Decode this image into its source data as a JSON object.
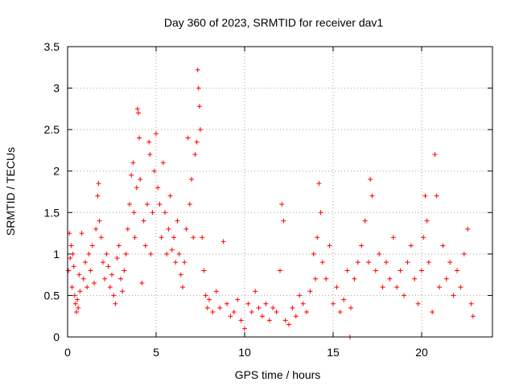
{
  "chart_data": {
    "type": "scatter",
    "title": "Day 360 of 2023, SRMTID for receiver dav1",
    "xlabel": "GPS time / hours",
    "ylabel": "SRMTID / TECUs",
    "xlim": [
      0,
      24
    ],
    "ylim": [
      0,
      3.5
    ],
    "xticks": [
      0,
      5,
      10,
      15,
      20
    ],
    "xtick_labels": [
      "0",
      "5",
      "10",
      "15",
      "20"
    ],
    "yticks": [
      0,
      0.5,
      1,
      1.5,
      2,
      2.5,
      3,
      3.5
    ],
    "ytick_labels": [
      "0",
      "0.5",
      "1",
      "1.5",
      "2",
      "2.5",
      "3",
      "3.5"
    ],
    "grid": true,
    "marker": "+",
    "color": "#ff0000",
    "series": [
      {
        "name": "dav1",
        "points": [
          [
            0.05,
            0.8
          ],
          [
            0.1,
            1.25
          ],
          [
            0.15,
            0.95
          ],
          [
            0.2,
            1.1
          ],
          [
            0.25,
            0.6
          ],
          [
            0.3,
            1.0
          ],
          [
            0.35,
            0.85
          ],
          [
            0.4,
            0.5
          ],
          [
            0.45,
            0.4
          ],
          [
            0.5,
            0.3
          ],
          [
            0.55,
            0.45
          ],
          [
            0.6,
            0.35
          ],
          [
            0.65,
            0.75
          ],
          [
            0.7,
            0.55
          ],
          [
            0.8,
            1.25
          ],
          [
            0.9,
            0.7
          ],
          [
            1.0,
            0.9
          ],
          [
            1.1,
            0.6
          ],
          [
            1.2,
            1.0
          ],
          [
            1.3,
            0.8
          ],
          [
            1.4,
            1.1
          ],
          [
            1.5,
            0.65
          ],
          [
            1.6,
            1.3
          ],
          [
            1.7,
            1.7
          ],
          [
            1.75,
            1.85
          ],
          [
            1.8,
            1.4
          ],
          [
            1.9,
            1.2
          ],
          [
            2.0,
            0.9
          ],
          [
            2.1,
            0.7
          ],
          [
            2.2,
            1.0
          ],
          [
            2.3,
            0.85
          ],
          [
            2.4,
            0.6
          ],
          [
            2.5,
            0.75
          ],
          [
            2.6,
            0.5
          ],
          [
            2.7,
            0.4
          ],
          [
            2.8,
            0.95
          ],
          [
            2.9,
            1.1
          ],
          [
            3.0,
            0.7
          ],
          [
            3.1,
            0.55
          ],
          [
            3.2,
            0.8
          ],
          [
            3.3,
            1.0
          ],
          [
            3.4,
            1.3
          ],
          [
            3.5,
            1.6
          ],
          [
            3.6,
            1.95
          ],
          [
            3.7,
            2.1
          ],
          [
            3.75,
            1.5
          ],
          [
            3.8,
            1.2
          ],
          [
            3.9,
            1.8
          ],
          [
            3.95,
            2.75
          ],
          [
            4.0,
            2.7
          ],
          [
            4.05,
            2.4
          ],
          [
            4.1,
            1.9
          ],
          [
            4.2,
            0.65
          ],
          [
            4.3,
            1.4
          ],
          [
            4.4,
            1.1
          ],
          [
            4.5,
            1.6
          ],
          [
            4.6,
            2.35
          ],
          [
            4.65,
            2.2
          ],
          [
            4.7,
            1.0
          ],
          [
            4.8,
            1.5
          ],
          [
            4.9,
            2.0
          ],
          [
            5.0,
            2.45
          ],
          [
            5.1,
            1.8
          ],
          [
            5.2,
            1.6
          ],
          [
            5.3,
            1.2
          ],
          [
            5.4,
            2.1
          ],
          [
            5.5,
            1.5
          ],
          [
            5.6,
            1.0
          ],
          [
            5.7,
            1.3
          ],
          [
            5.8,
            1.7
          ],
          [
            5.9,
            1.05
          ],
          [
            6.0,
            1.2
          ],
          [
            6.1,
            0.9
          ],
          [
            6.2,
            1.4
          ],
          [
            6.3,
            1.0
          ],
          [
            6.4,
            0.75
          ],
          [
            6.5,
            0.6
          ],
          [
            6.6,
            0.9
          ],
          [
            6.7,
            1.3
          ],
          [
            6.8,
            2.4
          ],
          [
            6.9,
            1.6
          ],
          [
            7.0,
            1.9
          ],
          [
            7.1,
            1.2
          ],
          [
            7.2,
            2.2
          ],
          [
            7.3,
            2.35
          ],
          [
            7.35,
            3.22
          ],
          [
            7.4,
            3.0
          ],
          [
            7.45,
            2.78
          ],
          [
            7.5,
            2.5
          ],
          [
            7.6,
            1.2
          ],
          [
            7.7,
            0.8
          ],
          [
            7.8,
            0.5
          ],
          [
            7.9,
            0.35
          ],
          [
            8.0,
            0.45
          ],
          [
            8.2,
            0.3
          ],
          [
            8.4,
            0.55
          ],
          [
            8.6,
            0.35
          ],
          [
            8.8,
            1.15
          ],
          [
            9.0,
            0.4
          ],
          [
            9.2,
            0.25
          ],
          [
            9.4,
            0.3
          ],
          [
            9.6,
            0.45
          ],
          [
            9.8,
            0.2
          ],
          [
            10.0,
            0.1
          ],
          [
            10.2,
            0.4
          ],
          [
            10.4,
            0.3
          ],
          [
            10.6,
            0.55
          ],
          [
            10.8,
            0.35
          ],
          [
            11.0,
            0.25
          ],
          [
            11.2,
            0.4
          ],
          [
            11.4,
            0.2
          ],
          [
            11.6,
            0.35
          ],
          [
            11.8,
            0.3
          ],
          [
            12.0,
            0.8
          ],
          [
            12.1,
            1.6
          ],
          [
            12.2,
            1.4
          ],
          [
            12.3,
            0.2
          ],
          [
            12.5,
            0.15
          ],
          [
            12.7,
            0.35
          ],
          [
            12.9,
            0.25
          ],
          [
            13.1,
            0.5
          ],
          [
            13.3,
            0.4
          ],
          [
            13.5,
            0.3
          ],
          [
            13.7,
            0.55
          ],
          [
            13.9,
            1.0
          ],
          [
            14.0,
            0.7
          ],
          [
            14.1,
            1.2
          ],
          [
            14.2,
            1.85
          ],
          [
            14.3,
            1.5
          ],
          [
            14.4,
            0.9
          ],
          [
            14.6,
            0.7
          ],
          [
            14.8,
            1.1
          ],
          [
            15.0,
            0.4
          ],
          [
            15.2,
            0.6
          ],
          [
            15.4,
            0.3
          ],
          [
            15.6,
            0.45
          ],
          [
            15.8,
            0.8
          ],
          [
            15.95,
            0.0
          ],
          [
            16.0,
            0.35
          ],
          [
            16.2,
            0.7
          ],
          [
            16.4,
            0.9
          ],
          [
            16.6,
            1.1
          ],
          [
            16.8,
            1.4
          ],
          [
            17.0,
            0.9
          ],
          [
            17.1,
            1.9
          ],
          [
            17.2,
            1.7
          ],
          [
            17.4,
            0.8
          ],
          [
            17.6,
            1.0
          ],
          [
            17.8,
            0.6
          ],
          [
            18.0,
            0.9
          ],
          [
            18.2,
            0.7
          ],
          [
            18.4,
            1.2
          ],
          [
            18.6,
            0.6
          ],
          [
            18.8,
            0.8
          ],
          [
            19.0,
            0.5
          ],
          [
            19.2,
            0.9
          ],
          [
            19.4,
            1.1
          ],
          [
            19.6,
            0.7
          ],
          [
            19.8,
            0.4
          ],
          [
            20.0,
            0.8
          ],
          [
            20.1,
            1.2
          ],
          [
            20.2,
            1.7
          ],
          [
            20.3,
            1.4
          ],
          [
            20.4,
            0.9
          ],
          [
            20.6,
            0.3
          ],
          [
            20.75,
            2.2
          ],
          [
            20.85,
            1.7
          ],
          [
            21.0,
            0.6
          ],
          [
            21.2,
            1.1
          ],
          [
            21.4,
            0.7
          ],
          [
            21.6,
            0.9
          ],
          [
            21.8,
            0.5
          ],
          [
            22.0,
            0.8
          ],
          [
            22.2,
            0.6
          ],
          [
            22.4,
            1.0
          ],
          [
            22.6,
            1.3
          ],
          [
            22.8,
            0.4
          ],
          [
            22.9,
            0.25
          ]
        ]
      }
    ]
  }
}
